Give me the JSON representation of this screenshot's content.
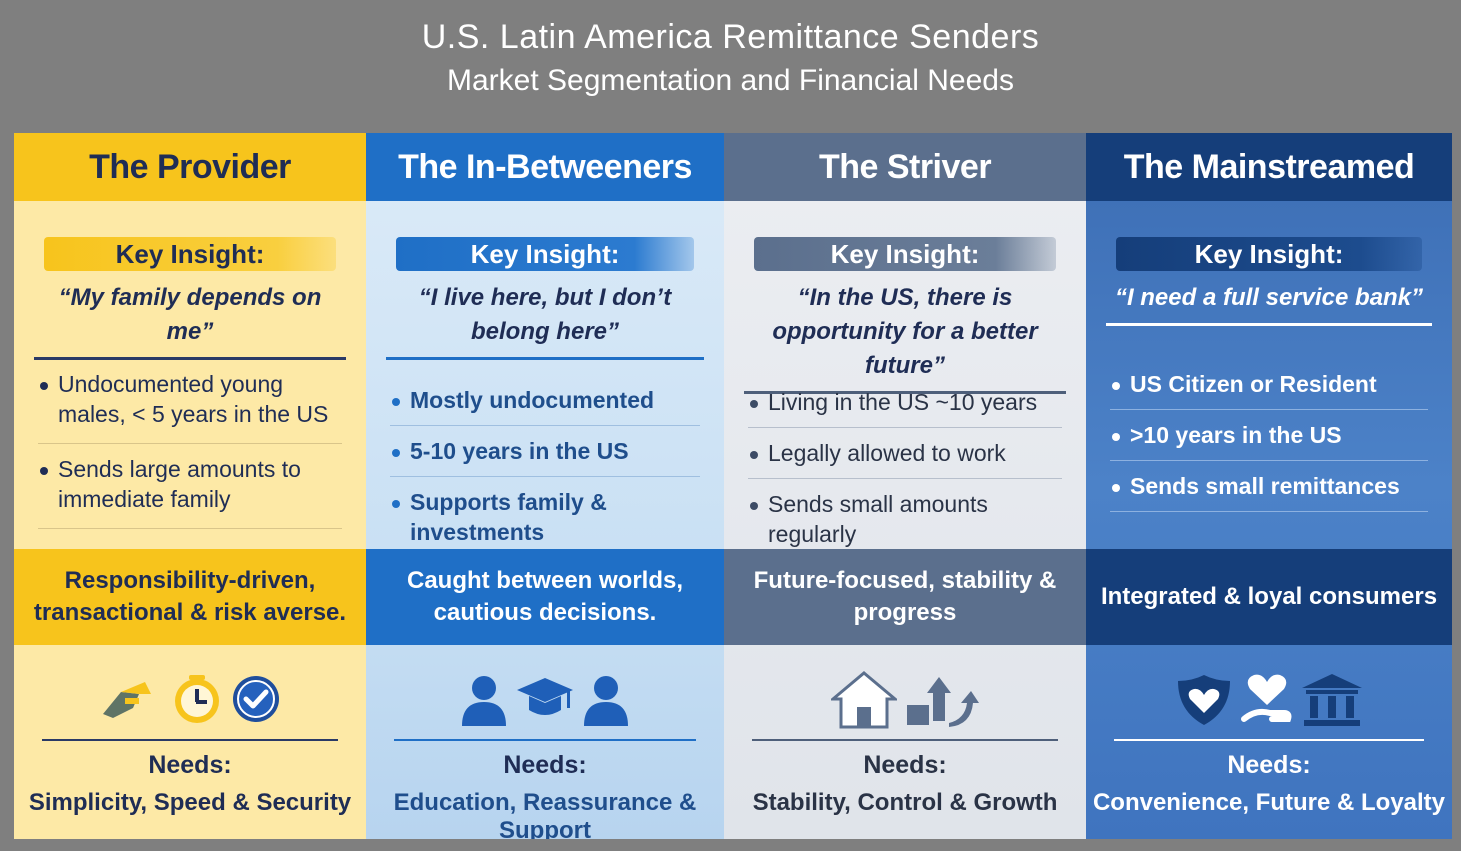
{
  "header": {
    "title": "U.S. Latin America Remittance Senders",
    "subtitle": "Market Segmentation and Financial Needs"
  },
  "insight_label": "Key Insight:",
  "needs_label": "Needs:",
  "segments": [
    {
      "name": "The Provider",
      "quote": "“My family depends on me”",
      "bullets": [
        "Undocumented young males, < 5 years in the US",
        "Sends large amounts to immediate family"
      ],
      "summary": "Responsibility-driven, transactional & risk averse.",
      "needs": "Simplicity, Speed & Security",
      "icons": [
        "money-hand-icon",
        "clock-icon",
        "check-shield-icon"
      ]
    },
    {
      "name": "The In-Betweeners",
      "quote": "“I live here, but I don’t belong here”",
      "bullets": [
        "Mostly undocumented",
        "5-10 years in the US",
        "Supports family & investments"
      ],
      "summary": "Caught between worlds, cautious decisions.",
      "needs": "Education, Reassurance & Support",
      "icons": [
        "person-icon",
        "graduation-cap-icon",
        "person-icon"
      ]
    },
    {
      "name": "The Striver",
      "quote": "“In the US, there is opportunity for a better future”",
      "bullets": [
        "Living in the US ~10 years",
        "Legally allowed to work",
        "Sends small amounts regularly"
      ],
      "summary": "Future-focused, stability & progress",
      "needs": "Stability, Control & Growth",
      "icons": [
        "house-icon",
        "growth-arrows-icon"
      ]
    },
    {
      "name": "The Mainstreamed",
      "quote": "“I need a full service bank”",
      "bullets": [
        "US Citizen or Resident",
        ">10 years in the US",
        "Sends small remittances"
      ],
      "summary": "Integrated & loyal consumers",
      "needs": "Convenience, Future & Loyalty",
      "icons": [
        "heart-shield-icon",
        "heart-hand-icon",
        "bank-icon"
      ]
    }
  ],
  "colors": {
    "provider": "#f7c41c",
    "in_betweeners": "#1f6fc6",
    "striver": "#5b6f8d",
    "mainstreamed": "#153e7a",
    "navy_text": "#1f2d55"
  }
}
